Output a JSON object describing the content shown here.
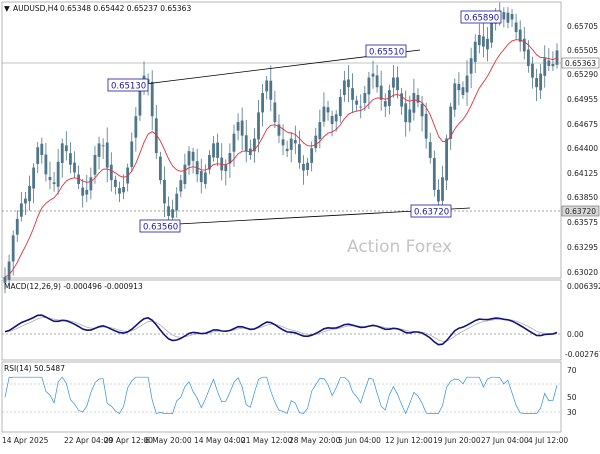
{
  "header": {
    "symbol_label": "AUDUSD,H4",
    "ohlc_label": "0.65348 0.65442 0.65237 0.65363"
  },
  "watermark": "Action Forex",
  "chart_data": [
    {
      "type": "candlestick",
      "title": "AUDUSD,H4",
      "ylim": [
        0.6302,
        0.6585
      ],
      "y_ticks": [
        "0.65705",
        "0.65505",
        "0.65290",
        "0.64955",
        "0.64675",
        "0.64400",
        "0.64125",
        "0.63850",
        "0.63575",
        "0.63295",
        "0.63020"
      ],
      "current_price": "0.65363",
      "support_line_label": "0.63720",
      "annotations": [
        {
          "label": "0.65130",
          "value": 0.6513
        },
        {
          "label": "0.65510",
          "value": 0.6551
        },
        {
          "label": "0.65890",
          "value": 0.6589
        },
        {
          "label": "0.63560",
          "value": 0.6356
        },
        {
          "label": "0.63720",
          "value": 0.6372
        }
      ],
      "trend_lines": [
        {
          "name": "upper",
          "from": {
            "x": "2025-05-05",
            "y": 0.6513
          },
          "to": {
            "x": "2025-06-12",
            "y": 0.6551
          }
        },
        {
          "name": "lower",
          "from": {
            "x": "2025-05-09",
            "y": 0.6356
          },
          "to": {
            "x": "2025-06-24",
            "y": 0.6372
          }
        }
      ],
      "closes": [
        0.6302,
        0.6318,
        0.6345,
        0.6362,
        0.6378,
        0.6383,
        0.6396,
        0.6415,
        0.6436,
        0.6428,
        0.6408,
        0.6402,
        0.6398,
        0.6421,
        0.644,
        0.6432,
        0.6418,
        0.641,
        0.6398,
        0.6386,
        0.6392,
        0.6405,
        0.6428,
        0.644,
        0.6438,
        0.6415,
        0.6402,
        0.6395,
        0.6388,
        0.6395,
        0.6415,
        0.6442,
        0.6468,
        0.6495,
        0.651,
        0.6502,
        0.6468,
        0.643,
        0.6402,
        0.6378,
        0.6365,
        0.6372,
        0.6388,
        0.6402,
        0.6418,
        0.6432,
        0.6422,
        0.6408,
        0.64,
        0.641,
        0.6428,
        0.644,
        0.6425,
        0.6412,
        0.6418,
        0.643,
        0.645,
        0.6462,
        0.6448,
        0.6432,
        0.6428,
        0.6445,
        0.6472,
        0.6492,
        0.6505,
        0.6485,
        0.6462,
        0.6448,
        0.6438,
        0.6432,
        0.6445,
        0.644,
        0.642,
        0.6412,
        0.642,
        0.6435,
        0.6448,
        0.6462,
        0.6478,
        0.6472,
        0.646,
        0.647,
        0.6488,
        0.6505,
        0.6498,
        0.6485,
        0.648,
        0.6478,
        0.6492,
        0.6508,
        0.6512,
        0.6498,
        0.6485,
        0.6478,
        0.6495,
        0.6508,
        0.6495,
        0.6478,
        0.6462,
        0.6475,
        0.6492,
        0.6482,
        0.6468,
        0.6445,
        0.6425,
        0.6392,
        0.638,
        0.6405,
        0.6445,
        0.6478,
        0.6502,
        0.6495,
        0.649,
        0.651,
        0.6528,
        0.6545,
        0.6552,
        0.654,
        0.6548,
        0.6565,
        0.6575,
        0.6572,
        0.6568,
        0.6575,
        0.6568,
        0.6555,
        0.6545,
        0.6535,
        0.652,
        0.6508,
        0.6498,
        0.6512,
        0.6528,
        0.652,
        0.6522,
        0.6536
      ],
      "moving_average_start": 0.6302,
      "x_ticks": [
        "14 Apr 2025",
        "22 Apr 04:00",
        "29 Apr 12:00",
        "6 May 20:00",
        "14 May 04:00",
        "21 May 12:00",
        "28 May 20:00",
        "5 Jun 04:00",
        "12 Jun 12:00",
        "19 Jun 20:00",
        "27 Jun 04:00",
        "4 Jul 12:00"
      ]
    },
    {
      "type": "line",
      "title": "MACD(12,26,9) -0.000496 -0.000913",
      "y_ticks": [
        "0.006392",
        "0.00",
        "-0.002767"
      ],
      "ylim": [
        -0.0036,
        0.0068
      ]
    },
    {
      "type": "line",
      "title": "RSI(14) 50.5487",
      "y_ticks": [
        "70",
        "50",
        "30"
      ],
      "ylim": [
        0,
        100
      ]
    }
  ],
  "macd_label": "MACD(12,26,9) -0.000496 -0.000913",
  "rsi_label": "RSI(14) 50.5487",
  "colors": {
    "candles": "#4e7589",
    "ma": "#e0323c",
    "macd": "#13137c",
    "signal": "#b0b0b0",
    "rsi": "#2f8fe0",
    "callout": "#1a1aa0",
    "trendline": "#000000"
  }
}
